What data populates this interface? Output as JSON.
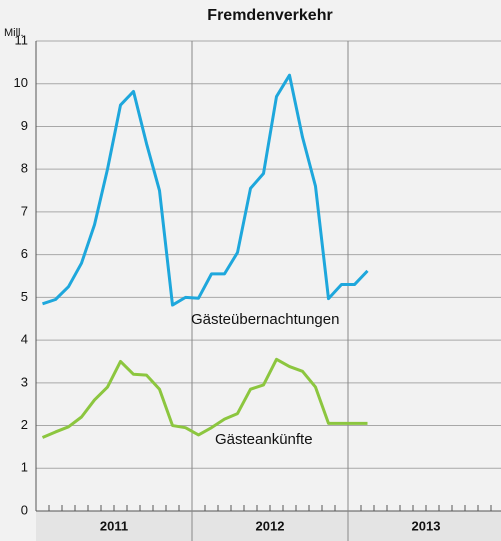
{
  "chart_data": {
    "type": "line",
    "title": "Fremdenverkehr",
    "y_label": "Mill.",
    "x_groups": [
      "2011",
      "2012",
      "2013"
    ],
    "categories": [
      null,
      null,
      null,
      null,
      null,
      null,
      null,
      null,
      null,
      null,
      null,
      null,
      null,
      null,
      null,
      null,
      null,
      null,
      null,
      null,
      null,
      null,
      null,
      null,
      null,
      null,
      null,
      null,
      null,
      null,
      null,
      null,
      null,
      null,
      null,
      null
    ],
    "series": [
      {
        "name": "Gästeübernachtungen",
        "color": "#1ea7dc",
        "values": [
          4.85,
          4.95,
          5.25,
          5.8,
          6.7,
          8.0,
          9.5,
          9.82,
          8.6,
          7.5,
          4.82,
          5.0,
          4.98,
          5.55,
          5.55,
          6.05,
          7.55,
          7.9,
          9.7,
          10.2,
          8.75,
          7.6,
          4.97,
          5.3,
          5.3,
          5.62,
          null,
          null,
          null,
          null,
          null,
          null,
          null,
          null,
          null,
          null
        ]
      },
      {
        "name": "Gästeankünfte",
        "color": "#8cc63f",
        "values": [
          1.72,
          1.85,
          1.97,
          2.2,
          2.6,
          2.9,
          3.5,
          3.2,
          3.18,
          2.85,
          2.0,
          1.95,
          1.78,
          1.95,
          2.15,
          2.28,
          2.85,
          2.95,
          3.55,
          3.38,
          3.27,
          2.9,
          2.05,
          2.05,
          2.05,
          2.05,
          null,
          null,
          null,
          null,
          null,
          null,
          null,
          null,
          null,
          null
        ]
      }
    ],
    "ylim": [
      0,
      11
    ],
    "yticks": [
      0,
      1,
      2,
      3,
      4,
      5,
      6,
      7,
      8,
      9,
      10,
      11
    ],
    "grid": true
  }
}
